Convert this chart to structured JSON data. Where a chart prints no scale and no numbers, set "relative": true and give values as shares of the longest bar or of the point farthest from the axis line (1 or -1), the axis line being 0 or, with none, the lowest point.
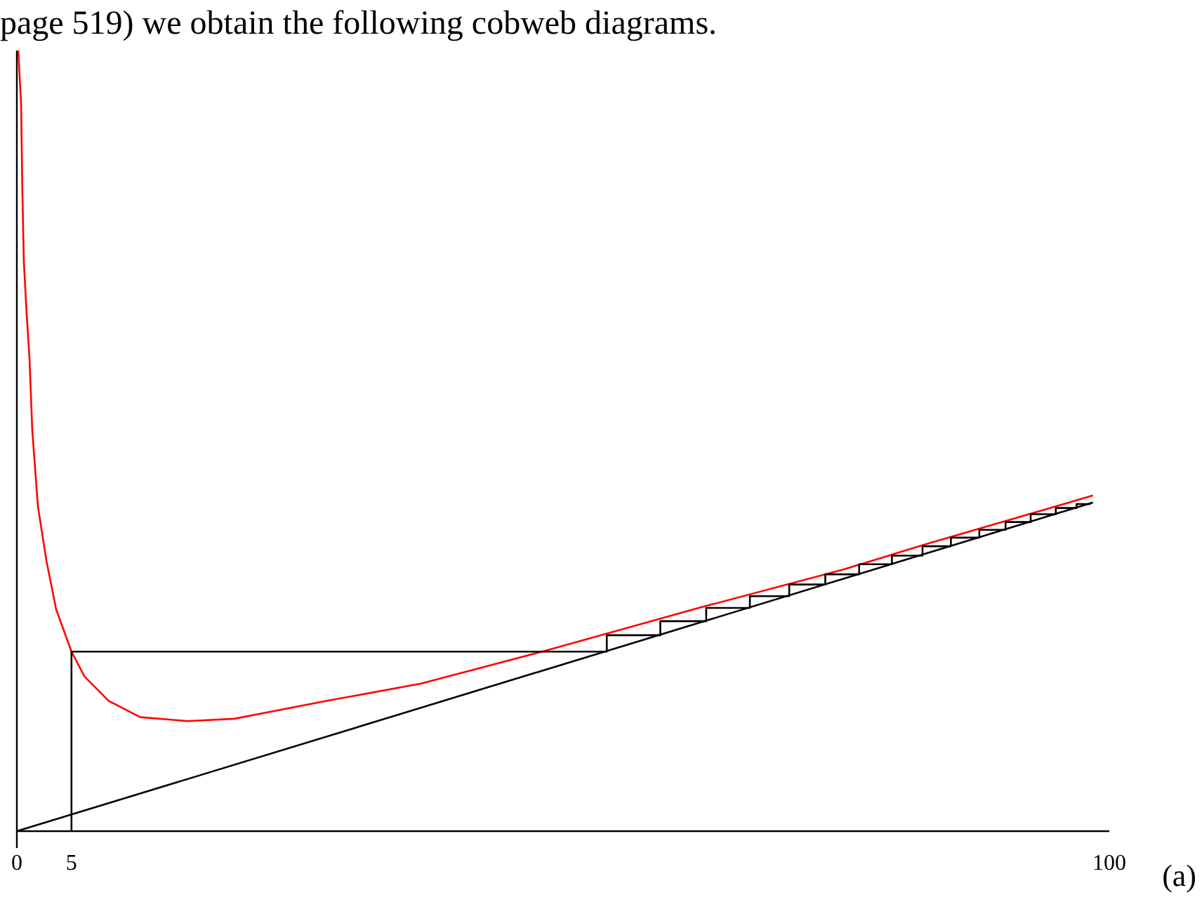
{
  "chart_data": {
    "type": "line",
    "relative": true,
    "xlim": [
      0,
      100
    ],
    "xticks": [
      0,
      5,
      100
    ],
    "grid": false,
    "marker": "none",
    "line_style": "solid",
    "annotations": [
      "page 519) we obtain the following cobweb diagrams.",
      "(a)"
    ],
    "series": [
      {
        "color": "#ff0000",
        "x": [
          0.13,
          0.39,
          0.51,
          0.64,
          0.9,
          1.16,
          1.29,
          1.41,
          1.93,
          2.7,
          3.6,
          5,
          6.2,
          8.4,
          11.3,
          15.6,
          19.9,
          28.4,
          37,
          48.6,
          62.7,
          75.6,
          83.3,
          98.5
        ],
        "values": [
          1,
          0.931,
          0.816,
          0.73,
          0.662,
          0.605,
          0.558,
          0.514,
          0.416,
          0.347,
          0.284,
          0.23,
          0.198,
          0.167,
          0.146,
          0.141,
          0.144,
          0.167,
          0.189,
          0.232,
          0.287,
          0.335,
          0.368,
          0.43
        ]
      },
      {
        "color": "#000000",
        "x": [
          0,
          98.5
        ],
        "values": [
          0,
          0.421
        ]
      },
      {
        "color": "#000000",
        "x": [
          5,
          5,
          54,
          54,
          58.9,
          58.9,
          63.1,
          63.1,
          67.1,
          67.1,
          70.7,
          70.7,
          74,
          74,
          77.1,
          77.1,
          80.1,
          80.1,
          82.9,
          82.9,
          85.5,
          85.5,
          88.1,
          88.1,
          90.5,
          90.5,
          92.8,
          92.8,
          95.1,
          95.1,
          97,
          97,
          98.3
        ],
        "values": [
          0,
          0.23,
          0.23,
          0.251,
          0.251,
          0.269,
          0.269,
          0.286,
          0.286,
          0.301,
          0.301,
          0.316,
          0.316,
          0.329,
          0.329,
          0.342,
          0.342,
          0.353,
          0.353,
          0.365,
          0.365,
          0.376,
          0.376,
          0.386,
          0.386,
          0.396,
          0.396,
          0.406,
          0.406,
          0.414,
          0.414,
          0.419,
          0.419
        ]
      }
    ]
  }
}
